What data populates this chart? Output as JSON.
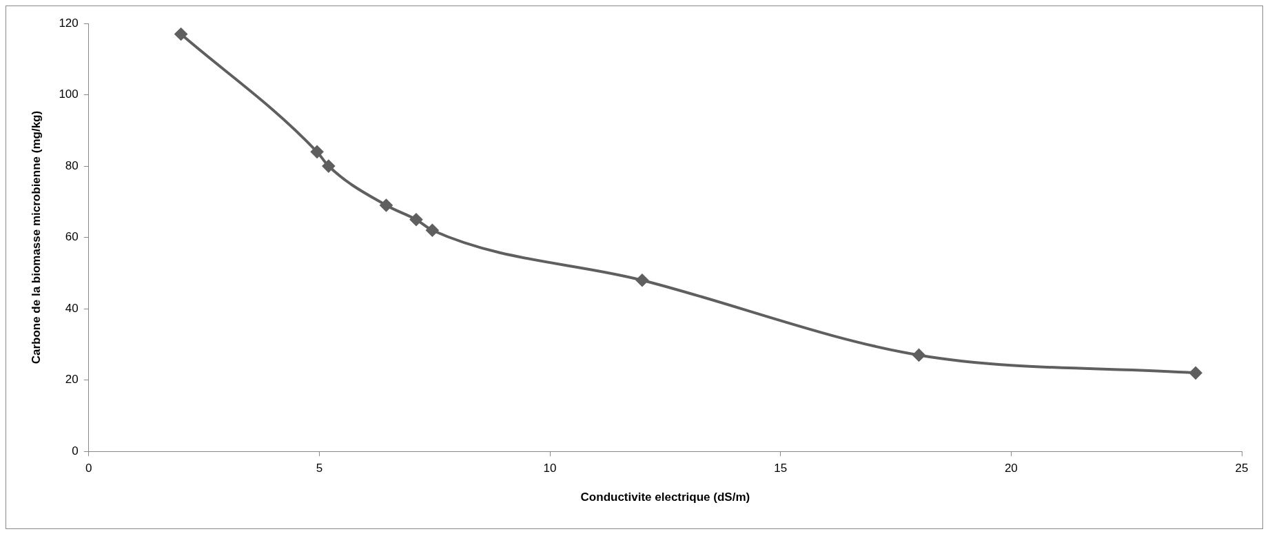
{
  "chart_data": {
    "type": "line",
    "xlabel": "Conductivite electrique (dS/m)",
    "ylabel": "Carbone de la biomasse microbienne (mg/kg)",
    "x": [
      2,
      4.95,
      5.2,
      6.45,
      7.1,
      7.45,
      12,
      18,
      24
    ],
    "series": [
      {
        "color": "#5f5f5f",
        "values": [
          117,
          84,
          80,
          69,
          65,
          62,
          48,
          27,
          22
        ]
      }
    ],
    "xlim": [
      0,
      25
    ],
    "xticks": [
      0,
      5,
      10,
      15,
      20,
      25
    ],
    "ylim": [
      0,
      120
    ],
    "yticks": [
      0,
      20,
      40,
      60,
      80,
      100,
      120
    ],
    "grid": false,
    "legend": false,
    "marker": "diamond",
    "line_style": "solid"
  }
}
